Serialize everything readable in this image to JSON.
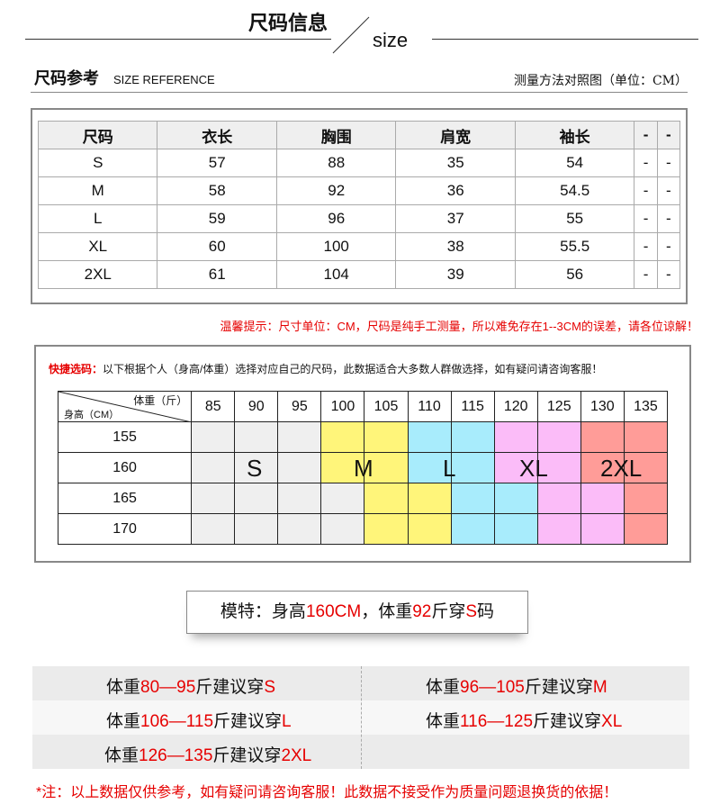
{
  "header": {
    "title_cn": "尺码信息",
    "title_en": "size"
  },
  "reference": {
    "title_cn": "尺码参考",
    "title_en": "SIZE REFERENCE",
    "method": "测量方法对照图（单位：CM）"
  },
  "size_table": {
    "headers": [
      "尺码",
      "衣长",
      "胸围",
      "肩宽",
      "袖长",
      "-",
      "-"
    ],
    "rows": [
      [
        "S",
        "57",
        "88",
        "35",
        "54",
        "-",
        "-"
      ],
      [
        "M",
        "58",
        "92",
        "36",
        "54.5",
        "-",
        "-"
      ],
      [
        "L",
        "59",
        "96",
        "37",
        "55",
        "-",
        "-"
      ],
      [
        "XL",
        "60",
        "100",
        "38",
        "55.5",
        "-",
        "-"
      ],
      [
        "2XL",
        "61",
        "104",
        "39",
        "56",
        "-",
        "-"
      ]
    ]
  },
  "warning": "温馨提示：尺寸单位：CM，尺码是纯手工测量，所以难免存在1--3CM的误差，请各位谅解！",
  "quick_select": {
    "label": "快捷选码：",
    "text": "以下根据个人（身高/体重）选择对应自己的尺码，此数据适合大多数人群做选择，如有疑问请咨询客服！",
    "corner_weight": "体重（斤）",
    "corner_height": "身高（CM）",
    "weights": [
      "85",
      "90",
      "95",
      "100",
      "105",
      "110",
      "115",
      "120",
      "125",
      "130",
      "135"
    ],
    "heights": [
      "155",
      "160",
      "165",
      "170"
    ],
    "grid": [
      [
        "S",
        "S",
        "S",
        "M",
        "M",
        "L",
        "L",
        "XL",
        "XL",
        "2XL",
        "2XL"
      ],
      [
        "S",
        "S",
        "S",
        "M",
        "M",
        "L",
        "L",
        "XL",
        "XL",
        "2XL",
        "2XL"
      ],
      [
        "S",
        "S",
        "S",
        "S",
        "M",
        "M",
        "L",
        "L",
        "XL",
        "XL",
        "2XL"
      ],
      [
        "S",
        "S",
        "S",
        "S",
        "M",
        "M",
        "L",
        "L",
        "XL",
        "XL",
        "2XL"
      ]
    ],
    "size_labels": [
      "S",
      "M",
      "L",
      "XL",
      "2XL"
    ],
    "colors": {
      "S": "#efefef",
      "M": "#fff57a",
      "L": "#a8ecfc",
      "XL": "#fbbcf8",
      "2XL": "#ff9c98"
    }
  },
  "model": {
    "p1": "模特：身高",
    "height": "160CM",
    "p2": "，体重",
    "weight": "92",
    "p3": "斤穿",
    "size": "S",
    "p4": "码"
  },
  "recommendations": [
    {
      "pre": "体重",
      "range": "80—95",
      "mid": "斤建议穿",
      "size": "S"
    },
    {
      "pre": "体重",
      "range": "96—105",
      "mid": "斤建议穿",
      "size": "M"
    },
    {
      "pre": "体重",
      "range": "106—115",
      "mid": "斤建议穿",
      "size": "L"
    },
    {
      "pre": "体重",
      "range": "116—125",
      "mid": "斤建议穿",
      "size": "XL"
    },
    {
      "pre": "体重",
      "range": "126—135",
      "mid": "斤建议穿",
      "size": "2XL"
    }
  ],
  "note": "*注：以上数据仅供参考，如有疑问请咨询客服！此数据不接受作为质量问题退换货的依据！"
}
